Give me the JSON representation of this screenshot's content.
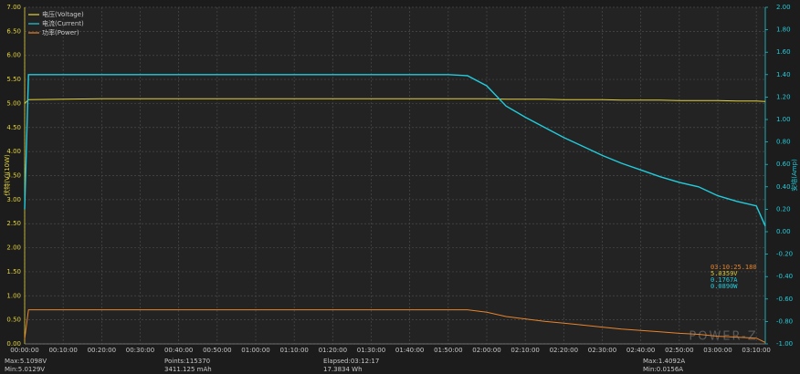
{
  "chart_data": {
    "type": "line",
    "y_label": "伏特(V)(10W)",
    "y2_label": "安培(Amp)",
    "x": [
      0,
      60,
      600,
      1200,
      1800,
      2400,
      3000,
      3600,
      4200,
      4800,
      5400,
      6000,
      6600,
      6900,
      7200,
      7500,
      7800,
      8100,
      8400,
      8700,
      9000,
      9300,
      9600,
      9900,
      10200,
      10500,
      10800,
      11100,
      11400,
      11540
    ],
    "series": [
      {
        "name": "电压(Voltage)",
        "color": "#e3d23c",
        "axis": "y",
        "values": [
          5.0,
          5.08,
          5.09,
          5.1,
          5.1,
          5.1,
          5.1,
          5.1,
          5.1,
          5.1,
          5.1,
          5.1,
          5.1,
          5.1,
          5.1,
          5.09,
          5.09,
          5.09,
          5.08,
          5.08,
          5.08,
          5.07,
          5.07,
          5.07,
          5.06,
          5.06,
          5.06,
          5.05,
          5.05,
          5.04
        ]
      },
      {
        "name": "电流(Current)",
        "color": "#22ccdc",
        "axis": "y2",
        "values": [
          0.2,
          1.4,
          1.4,
          1.4,
          1.4,
          1.4,
          1.4,
          1.4,
          1.4,
          1.4,
          1.4,
          1.4,
          1.4,
          1.39,
          1.3,
          1.12,
          1.02,
          0.93,
          0.84,
          0.76,
          0.68,
          0.61,
          0.55,
          0.49,
          0.44,
          0.4,
          0.32,
          0.27,
          0.23,
          0.05
        ]
      },
      {
        "name": "功率(Power)",
        "color": "#e8842c",
        "axis": "y",
        "values": [
          0.1,
          0.71,
          0.71,
          0.71,
          0.71,
          0.71,
          0.71,
          0.71,
          0.71,
          0.71,
          0.71,
          0.71,
          0.71,
          0.71,
          0.66,
          0.57,
          0.52,
          0.47,
          0.43,
          0.39,
          0.35,
          0.31,
          0.28,
          0.25,
          0.22,
          0.2,
          0.16,
          0.14,
          0.12,
          0.03
        ]
      }
    ],
    "xlim": [
      0,
      11540
    ],
    "xticks": [
      {
        "value": 0,
        "label": "00:00:00"
      },
      {
        "value": 600,
        "label": "00:10:00"
      },
      {
        "value": 1200,
        "label": "00:20:00"
      },
      {
        "value": 1800,
        "label": "00:30:00"
      },
      {
        "value": 2400,
        "label": "00:40:00"
      },
      {
        "value": 3000,
        "label": "00:50:00"
      },
      {
        "value": 3600,
        "label": "01:00:00"
      },
      {
        "value": 4200,
        "label": "01:10:00"
      },
      {
        "value": 4800,
        "label": "01:20:00"
      },
      {
        "value": 5400,
        "label": "01:30:00"
      },
      {
        "value": 6000,
        "label": "01:40:00"
      },
      {
        "value": 6600,
        "label": "01:50:00"
      },
      {
        "value": 7200,
        "label": "02:00:00"
      },
      {
        "value": 7800,
        "label": "02:10:00"
      },
      {
        "value": 8400,
        "label": "02:20:00"
      },
      {
        "value": 9000,
        "label": "02:30:00"
      },
      {
        "value": 9600,
        "label": "02:40:00"
      },
      {
        "value": 10200,
        "label": "02:50:00"
      },
      {
        "value": 10800,
        "label": "03:00:00"
      },
      {
        "value": 11400,
        "label": "03:10:00"
      }
    ],
    "ylim": [
      0,
      7
    ],
    "yticks": [
      {
        "value": 0,
        "label": "0.00"
      },
      {
        "value": 0.5,
        "label": "0.50"
      },
      {
        "value": 1,
        "label": "1.00"
      },
      {
        "value": 1.5,
        "label": "1.50"
      },
      {
        "value": 2,
        "label": "2.00"
      },
      {
        "value": 2.5,
        "label": "2.50"
      },
      {
        "value": 3,
        "label": "3.00"
      },
      {
        "value": 3.5,
        "label": "3.50"
      },
      {
        "value": 4,
        "label": "4.00"
      },
      {
        "value": 4.5,
        "label": "4.50"
      },
      {
        "value": 5,
        "label": "5.00"
      },
      {
        "value": 5.5,
        "label": "5.50"
      },
      {
        "value": 6,
        "label": "6.00"
      },
      {
        "value": 6.5,
        "label": "6.50"
      },
      {
        "value": 7,
        "label": "7.00"
      }
    ],
    "y2lim": [
      -1,
      2
    ],
    "y2ticks": [
      {
        "value": -1,
        "label": "-1.00"
      },
      {
        "value": -0.8,
        "label": "-0.80"
      },
      {
        "value": -0.6,
        "label": "-0.60"
      },
      {
        "value": -0.4,
        "label": "-0.40"
      },
      {
        "value": -0.2,
        "label": "-0.20"
      },
      {
        "value": 0,
        "label": "0.00"
      },
      {
        "value": 0.2,
        "label": "0.20"
      },
      {
        "value": 0.4,
        "label": "0.40"
      },
      {
        "value": 0.6,
        "label": "0.60"
      },
      {
        "value": 0.8,
        "label": "0.80"
      },
      {
        "value": 1,
        "label": "1.00"
      },
      {
        "value": 1.2,
        "label": "1.20"
      },
      {
        "value": 1.4,
        "label": "1.40"
      },
      {
        "value": 1.6,
        "label": "1.60"
      },
      {
        "value": 1.8,
        "label": "1.80"
      },
      {
        "value": 2,
        "label": "2.00"
      }
    ],
    "grid": true,
    "legend": "upper left"
  },
  "cursor_readout": {
    "time": "03:10:25.180",
    "voltage": "5.0359V",
    "current": "0.1767A",
    "power": "0.0890W"
  },
  "watermark": "POWER-Z",
  "stats": [
    [
      "Max:5.1098V",
      "Min:5.0129V"
    ],
    [
      "Points:115370",
      "3411.125 mAh"
    ],
    [
      "Elapsed:03:12:17",
      "17.3834 Wh"
    ],
    [
      "Max:1.4092A",
      "Min:0.0156A"
    ]
  ]
}
